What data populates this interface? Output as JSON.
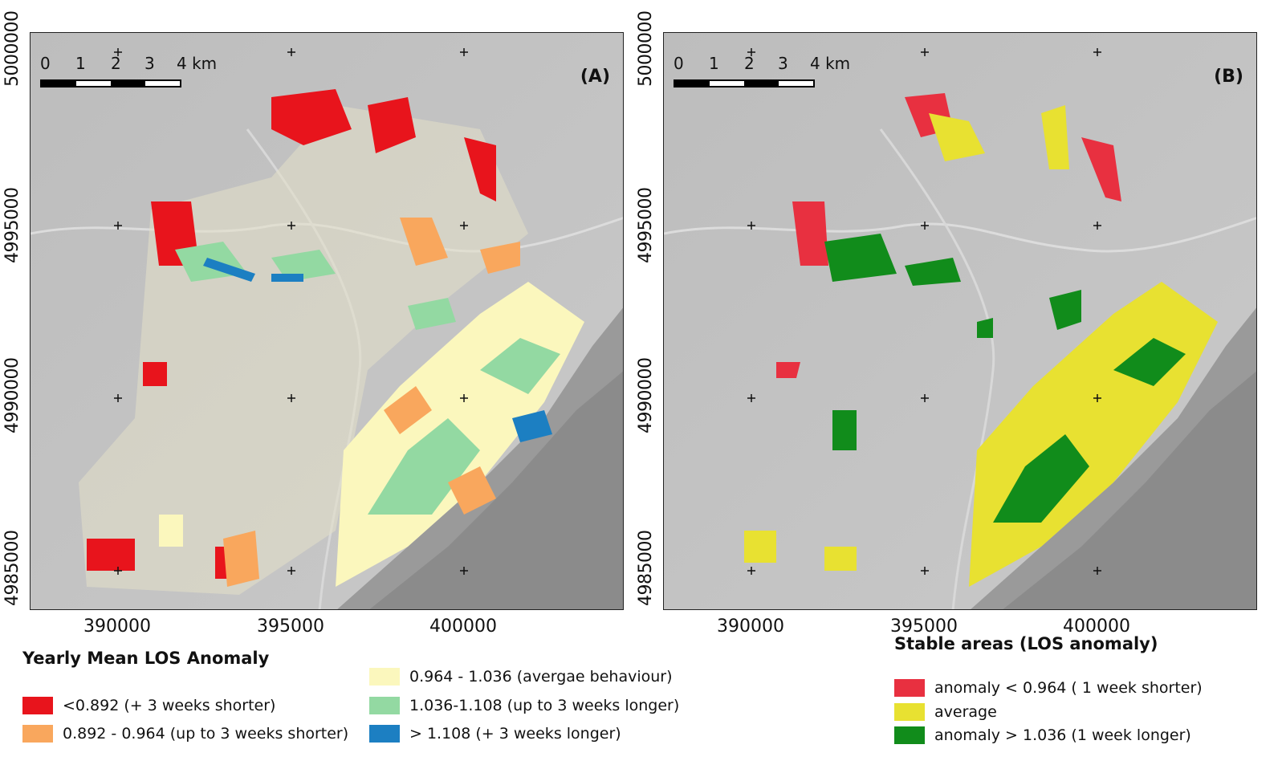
{
  "map_a": {
    "label": "(A)",
    "scale_labels": [
      "0",
      "1",
      "2",
      "3",
      "4 km"
    ]
  },
  "map_b": {
    "label": "(B)",
    "scale_labels": [
      "0",
      "1",
      "2",
      "3",
      "4 km"
    ]
  },
  "axes": {
    "y_ticks": [
      "5000000",
      "4995000",
      "4990000",
      "4985000"
    ],
    "x_ticks": [
      "390000",
      "395000",
      "400000"
    ]
  },
  "legend_a": {
    "title": "Yearly Mean LOS Anomaly",
    "items": [
      {
        "label": "<0.892   (+ 3 weeks shorter)",
        "color": "#e8141c"
      },
      {
        "label": "0.892 - 0.964  (up to 3 weeks shorter)",
        "color": "#f9a75d"
      },
      {
        "label": "0.964 - 1.036 (avergae behaviour)",
        "color": "#fbf7bd"
      },
      {
        "label": "1.036-1.108 (up to 3 weeks longer)",
        "color": "#93d9a2"
      },
      {
        "label": "> 1.108 (+ 3 weeks longer)",
        "color": "#1c7fc2"
      }
    ]
  },
  "legend_b": {
    "title": "Stable areas (LOS anomaly)",
    "items": [
      {
        "label": "anomaly < 0.964 ( 1 week shorter)",
        "color": "#e83040"
      },
      {
        "label": "average",
        "color": "#e8e131"
      },
      {
        "label": "anomaly > 1.036 (1 week longer)",
        "color": "#118c1b"
      }
    ]
  }
}
